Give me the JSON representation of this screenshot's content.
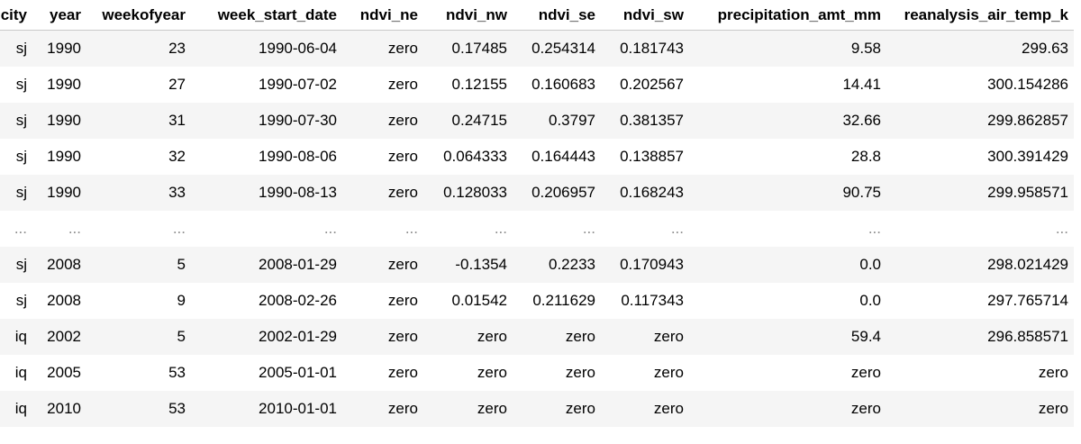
{
  "table": {
    "columns": [
      "city",
      "year",
      "weekofyear",
      "week_start_date",
      "ndvi_ne",
      "ndvi_nw",
      "ndvi_se",
      "ndvi_sw",
      "precipitation_amt_mm",
      "reanalysis_air_temp_k"
    ],
    "rows": [
      [
        "sj",
        "1990",
        "23",
        "1990-06-04",
        "zero",
        "0.17485",
        "0.254314",
        "0.181743",
        "9.58",
        "299.63"
      ],
      [
        "sj",
        "1990",
        "27",
        "1990-07-02",
        "zero",
        "0.12155",
        "0.160683",
        "0.202567",
        "14.41",
        "300.154286"
      ],
      [
        "sj",
        "1990",
        "31",
        "1990-07-30",
        "zero",
        "0.24715",
        "0.3797",
        "0.381357",
        "32.66",
        "299.862857"
      ],
      [
        "sj",
        "1990",
        "32",
        "1990-08-06",
        "zero",
        "0.064333",
        "0.164443",
        "0.138857",
        "28.8",
        "300.391429"
      ],
      [
        "sj",
        "1990",
        "33",
        "1990-08-13",
        "zero",
        "0.128033",
        "0.206957",
        "0.168243",
        "90.75",
        "299.958571"
      ],
      [
        "...",
        "...",
        "...",
        "...",
        "...",
        "...",
        "...",
        "...",
        "...",
        "..."
      ],
      [
        "sj",
        "2008",
        "5",
        "2008-01-29",
        "zero",
        "-0.1354",
        "0.2233",
        "0.170943",
        "0.0",
        "298.021429"
      ],
      [
        "sj",
        "2008",
        "9",
        "2008-02-26",
        "zero",
        "0.01542",
        "0.211629",
        "0.117343",
        "0.0",
        "297.765714"
      ],
      [
        "iq",
        "2002",
        "5",
        "2002-01-29",
        "zero",
        "zero",
        "zero",
        "zero",
        "59.4",
        "296.858571"
      ],
      [
        "iq",
        "2005",
        "53",
        "2005-01-01",
        "zero",
        "zero",
        "zero",
        "zero",
        "zero",
        "zero"
      ],
      [
        "iq",
        "2010",
        "53",
        "2010-01-01",
        "zero",
        "zero",
        "zero",
        "zero",
        "zero",
        "zero"
      ]
    ]
  }
}
